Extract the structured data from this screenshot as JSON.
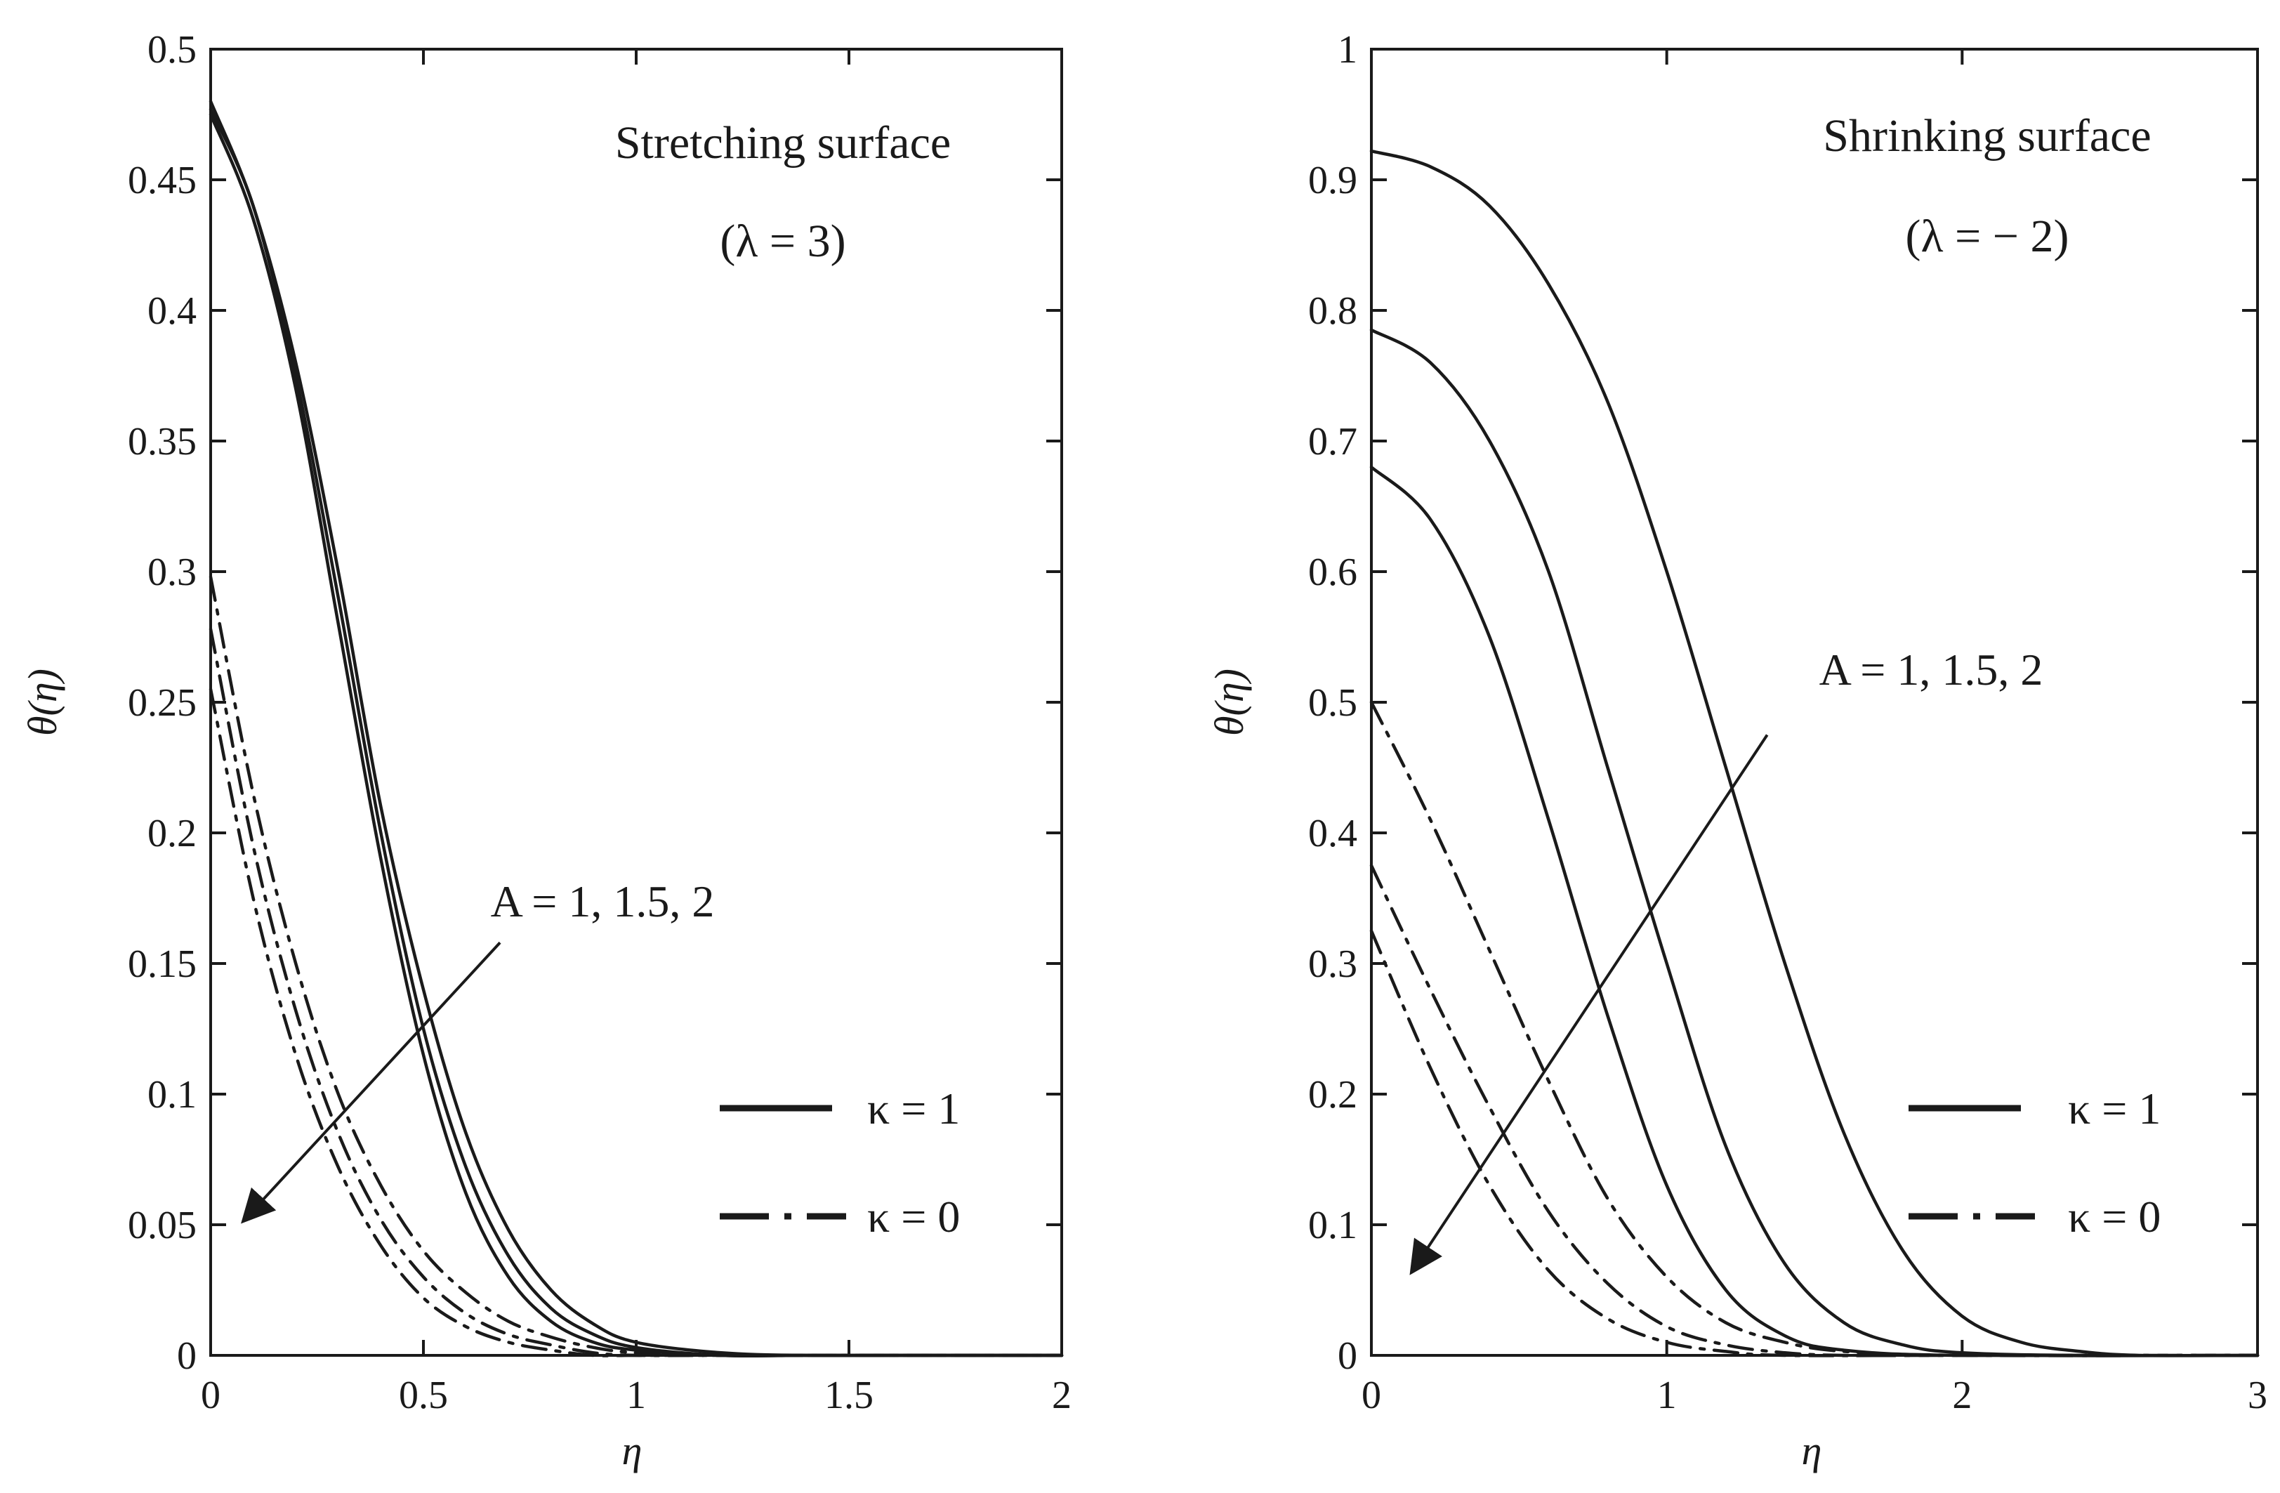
{
  "chart_data": [
    {
      "id": "left",
      "type": "line",
      "title": "Stretching surface",
      "subtitle": "(λ = 3)",
      "xlabel": "η",
      "ylabel": "θ(η)",
      "xlim": [
        0,
        2
      ],
      "ylim": [
        0,
        0.5
      ],
      "xticks": [
        0,
        0.5,
        1,
        1.5,
        2
      ],
      "xtick_labels": [
        "0",
        "0.5",
        "1",
        "1.5",
        "2"
      ],
      "yticks": [
        0,
        0.05,
        0.1,
        0.15,
        0.2,
        0.25,
        0.3,
        0.35,
        0.4,
        0.45,
        0.5
      ],
      "ytick_labels": [
        "0",
        "0.05",
        "0.1",
        "0.15",
        "0.2",
        "0.25",
        "0.3",
        "0.35",
        "0.4",
        "0.45",
        "0.5"
      ],
      "grid": false,
      "annotation": {
        "text": "A = 1, 1.5, 2",
        "arrow_from": [
          0.68,
          0.158
        ],
        "arrow_to": [
          0.08,
          0.052
        ]
      },
      "legend": {
        "position": "bottom-right",
        "entries": [
          {
            "label": "κ = 1",
            "style": "solid"
          },
          {
            "label": "κ = 0",
            "style": "dashdot"
          }
        ]
      },
      "series": [
        {
          "name": "κ = 1, A = 1",
          "style": "solid",
          "x": [
            0,
            0.1,
            0.2,
            0.3,
            0.4,
            0.5,
            0.6,
            0.7,
            0.8,
            0.9,
            1.0,
            1.2,
            1.4,
            1.6,
            2.0
          ],
          "y": [
            0.48,
            0.44,
            0.38,
            0.3,
            0.21,
            0.14,
            0.085,
            0.048,
            0.025,
            0.012,
            0.005,
            0.001,
            0.0,
            0.0,
            0.0
          ]
        },
        {
          "name": "κ = 1, A = 1.5",
          "style": "solid",
          "x": [
            0,
            0.1,
            0.2,
            0.3,
            0.4,
            0.5,
            0.6,
            0.7,
            0.8,
            0.9,
            1.0,
            1.2,
            1.4,
            1.6,
            2.0
          ],
          "y": [
            0.477,
            0.44,
            0.375,
            0.29,
            0.2,
            0.125,
            0.072,
            0.038,
            0.018,
            0.008,
            0.003,
            0.0,
            0.0,
            0.0,
            0.0
          ]
        },
        {
          "name": "κ = 1, A = 2",
          "style": "solid",
          "x": [
            0,
            0.1,
            0.2,
            0.3,
            0.4,
            0.5,
            0.6,
            0.7,
            0.8,
            0.9,
            1.0,
            1.2,
            1.4,
            1.6,
            2.0
          ],
          "y": [
            0.475,
            0.435,
            0.37,
            0.28,
            0.19,
            0.115,
            0.062,
            0.03,
            0.013,
            0.005,
            0.002,
            0.0,
            0.0,
            0.0,
            0.0
          ]
        },
        {
          "name": "κ = 0, A = 1",
          "style": "dashdot",
          "x": [
            0,
            0.1,
            0.2,
            0.3,
            0.4,
            0.5,
            0.6,
            0.7,
            0.8,
            0.9,
            1.0,
            1.2,
            1.4,
            2.0
          ],
          "y": [
            0.298,
            0.215,
            0.15,
            0.1,
            0.065,
            0.04,
            0.024,
            0.013,
            0.007,
            0.003,
            0.001,
            0.0,
            0.0,
            0.0
          ]
        },
        {
          "name": "κ = 0, A = 1.5",
          "style": "dashdot",
          "x": [
            0,
            0.1,
            0.2,
            0.3,
            0.4,
            0.5,
            0.6,
            0.7,
            0.8,
            0.9,
            1.0,
            1.2,
            1.4,
            2.0
          ],
          "y": [
            0.278,
            0.195,
            0.132,
            0.085,
            0.052,
            0.03,
            0.016,
            0.008,
            0.004,
            0.001,
            0.0,
            0.0,
            0.0,
            0.0
          ]
        },
        {
          "name": "κ = 0, A = 2",
          "style": "dashdot",
          "x": [
            0,
            0.1,
            0.2,
            0.3,
            0.4,
            0.5,
            0.6,
            0.7,
            0.8,
            0.9,
            1.0,
            1.2,
            1.4,
            2.0
          ],
          "y": [
            0.255,
            0.175,
            0.115,
            0.072,
            0.042,
            0.022,
            0.011,
            0.005,
            0.002,
            0.0,
            0.0,
            0.0,
            0.0,
            0.0
          ]
        }
      ]
    },
    {
      "id": "right",
      "type": "line",
      "title": "Shrinking surface",
      "subtitle": "(λ = − 2)",
      "xlabel": "η",
      "ylabel": "θ(η)",
      "xlim": [
        0,
        3
      ],
      "ylim": [
        0,
        1
      ],
      "xticks": [
        0,
        1,
        2,
        3
      ],
      "xtick_labels": [
        "0",
        "1",
        "2",
        "3"
      ],
      "yticks": [
        0,
        0.1,
        0.2,
        0.3,
        0.4,
        0.5,
        0.6,
        0.7,
        0.8,
        0.9,
        1
      ],
      "ytick_labels": [
        "0",
        "0.1",
        "0.2",
        "0.3",
        "0.4",
        "0.5",
        "0.6",
        "0.7",
        "0.8",
        "0.9",
        "1"
      ],
      "grid": false,
      "annotation": {
        "text": "A = 1, 1.5, 2",
        "arrow_from": [
          1.34,
          0.475
        ],
        "arrow_to": [
          0.14,
          0.065
        ]
      },
      "legend": {
        "position": "bottom-right",
        "entries": [
          {
            "label": "κ = 1",
            "style": "solid"
          },
          {
            "label": "κ = 0",
            "style": "dashdot"
          }
        ]
      },
      "series": [
        {
          "name": "κ = 1, A = 1",
          "style": "solid",
          "x": [
            0,
            0.2,
            0.4,
            0.6,
            0.8,
            1.0,
            1.2,
            1.4,
            1.6,
            1.8,
            2.0,
            2.2,
            2.4,
            2.6,
            3.0
          ],
          "y": [
            0.922,
            0.91,
            0.88,
            0.82,
            0.73,
            0.6,
            0.45,
            0.3,
            0.17,
            0.08,
            0.03,
            0.01,
            0.003,
            0.0,
            0.0
          ]
        },
        {
          "name": "κ = 1, A = 1.5",
          "style": "solid",
          "x": [
            0,
            0.2,
            0.4,
            0.6,
            0.8,
            1.0,
            1.2,
            1.4,
            1.6,
            1.8,
            2.0,
            2.4,
            3.0
          ],
          "y": [
            0.785,
            0.76,
            0.7,
            0.6,
            0.45,
            0.3,
            0.16,
            0.07,
            0.025,
            0.008,
            0.002,
            0.0,
            0.0
          ]
        },
        {
          "name": "κ = 1, A = 2",
          "style": "solid",
          "x": [
            0,
            0.2,
            0.4,
            0.6,
            0.8,
            1.0,
            1.2,
            1.4,
            1.6,
            2.0,
            3.0
          ],
          "y": [
            0.68,
            0.64,
            0.55,
            0.41,
            0.26,
            0.13,
            0.05,
            0.015,
            0.004,
            0.0,
            0.0
          ]
        },
        {
          "name": "κ = 0, A = 1",
          "style": "dashdot",
          "x": [
            0,
            0.2,
            0.4,
            0.6,
            0.8,
            1.0,
            1.2,
            1.4,
            1.6,
            2.0,
            3.0
          ],
          "y": [
            0.5,
            0.41,
            0.31,
            0.21,
            0.12,
            0.06,
            0.025,
            0.01,
            0.003,
            0.0,
            0.0
          ]
        },
        {
          "name": "κ = 0, A = 1.5",
          "style": "dashdot",
          "x": [
            0,
            0.2,
            0.4,
            0.6,
            0.8,
            1.0,
            1.2,
            1.4,
            1.6,
            2.0,
            3.0
          ],
          "y": [
            0.375,
            0.28,
            0.19,
            0.11,
            0.055,
            0.022,
            0.008,
            0.002,
            0.0,
            0.0,
            0.0
          ]
        },
        {
          "name": "κ = 0, A = 2",
          "style": "dashdot",
          "x": [
            0,
            0.2,
            0.4,
            0.6,
            0.8,
            1.0,
            1.2,
            1.4,
            2.0,
            3.0
          ],
          "y": [
            0.325,
            0.22,
            0.13,
            0.065,
            0.028,
            0.01,
            0.003,
            0.0,
            0.0,
            0.0
          ]
        }
      ]
    }
  ]
}
